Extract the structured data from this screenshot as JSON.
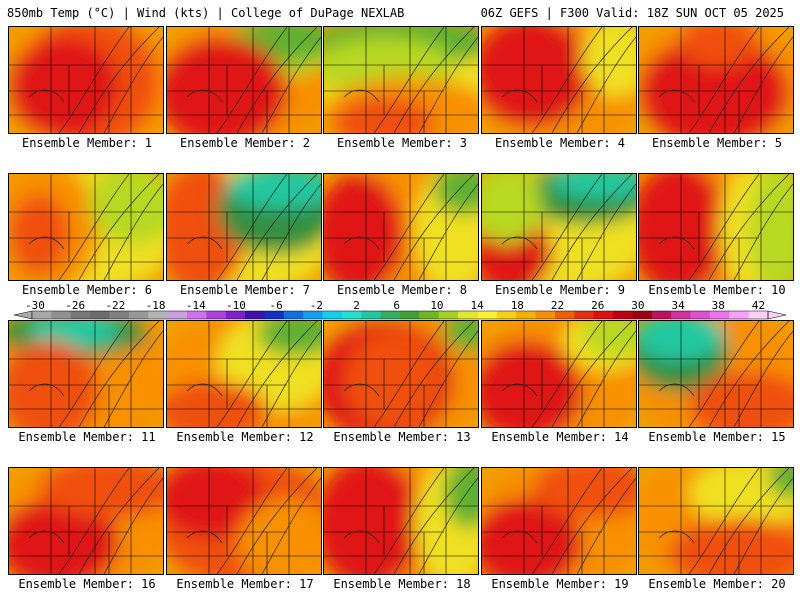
{
  "header": {
    "left": "850mb Temp (°C) | Wind (kts) | College of DuPage NEXLAB",
    "right": "06Z GEFS | F300 Valid: 18Z SUN OCT 05 2025"
  },
  "colorbar": {
    "labels": [
      "-30",
      "-26",
      "-22",
      "-18",
      "-14",
      "-10",
      "-6",
      "-2",
      "2",
      "6",
      "10",
      "14",
      "18",
      "22",
      "26",
      "30",
      "34",
      "38",
      "42"
    ],
    "colors": [
      "#a8a8a8",
      "#909090",
      "#787878",
      "#6c6c6c",
      "#808080",
      "#989898",
      "#b4b4b4",
      "#c8a0e0",
      "#d070f0",
      "#b040e0",
      "#8020c8",
      "#4010b0",
      "#1030c8",
      "#1070e0",
      "#10a0f0",
      "#10d0f0",
      "#20e0d0",
      "#20c8a0",
      "#30b060",
      "#40a030",
      "#70b820",
      "#a8d020",
      "#e0e828",
      "#f8f030",
      "#f8d010",
      "#f8b000",
      "#f89000",
      "#f06000",
      "#e83010",
      "#e01010",
      "#c00010",
      "#a00010",
      "#c01060",
      "#d030a0",
      "#e050d0",
      "#f070f0",
      "#f8a0f8",
      "#f8d0f8"
    ]
  },
  "members": [
    {
      "label": "Ensemble Member: 1"
    },
    {
      "label": "Ensemble Member: 2"
    },
    {
      "label": "Ensemble Member: 3"
    },
    {
      "label": "Ensemble Member: 4"
    },
    {
      "label": "Ensemble Member: 5"
    },
    {
      "label": "Ensemble Member: 6"
    },
    {
      "label": "Ensemble Member: 7"
    },
    {
      "label": "Ensemble Member: 8"
    },
    {
      "label": "Ensemble Member: 9"
    },
    {
      "label": "Ensemble Member: 10"
    },
    {
      "label": "Ensemble Member: 11"
    },
    {
      "label": "Ensemble Member: 12"
    },
    {
      "label": "Ensemble Member: 13"
    },
    {
      "label": "Ensemble Member: 14"
    },
    {
      "label": "Ensemble Member: 15"
    },
    {
      "label": "Ensemble Member: 16"
    },
    {
      "label": "Ensemble Member: 17"
    },
    {
      "label": "Ensemble Member: 18"
    },
    {
      "label": "Ensemble Member: 19"
    },
    {
      "label": "Ensemble Member: 20"
    }
  ],
  "palette": {
    "red": "#e01818",
    "orange_red": "#f05010",
    "orange": "#f89000",
    "orange_light": "#f8b000",
    "yellow": "#f0e020",
    "yellow_green": "#b8d820",
    "green": "#60b030",
    "dark_green": "#309040",
    "teal": "#20c8a0",
    "cyan": "#20e0e0"
  }
}
